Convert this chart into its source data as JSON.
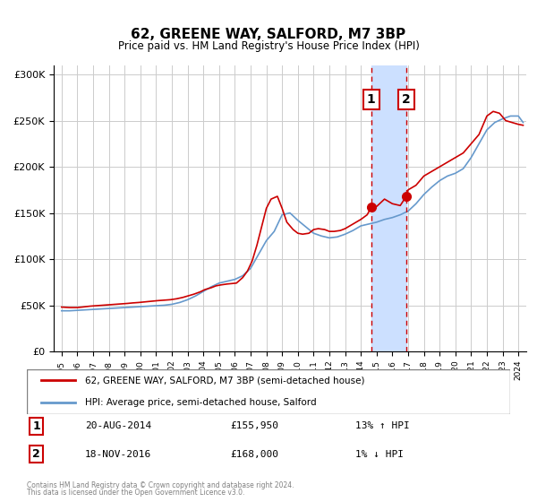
{
  "title": "62, GREENE WAY, SALFORD, M7 3BP",
  "subtitle": "Price paid vs. HM Land Registry's House Price Index (HPI)",
  "legend_label_red": "62, GREENE WAY, SALFORD, M7 3BP (semi-detached house)",
  "legend_label_blue": "HPI: Average price, semi-detached house, Salford",
  "annotation1_label": "1",
  "annotation1_date": "20-AUG-2014",
  "annotation1_price": "£155,950",
  "annotation1_hpi": "13% ↑ HPI",
  "annotation2_label": "2",
  "annotation2_date": "18-NOV-2016",
  "annotation2_price": "£168,000",
  "annotation2_hpi": "1% ↓ HPI",
  "footer1": "Contains HM Land Registry data © Crown copyright and database right 2024.",
  "footer2": "This data is licensed under the Open Government Licence v3.0.",
  "marker1_year": 2014.65,
  "marker1_value": 155950,
  "marker2_year": 2016.88,
  "marker2_value": 168000,
  "vline1_year": 2014.65,
  "vline2_year": 2016.88,
  "shade_start": 2014.65,
  "shade_end": 2016.88,
  "ylim": [
    0,
    310000
  ],
  "xlim_start": 1994.5,
  "xlim_end": 2024.5,
  "red_color": "#cc0000",
  "blue_color": "#6699cc",
  "shade_color": "#cce0ff",
  "grid_color": "#cccccc",
  "background_color": "#ffffff",
  "red_data_years": [
    1995.0,
    1995.5,
    1996.0,
    1996.3,
    1996.8,
    1997.2,
    1997.6,
    1998.0,
    1998.4,
    1998.8,
    1999.2,
    1999.5,
    1999.9,
    2000.2,
    2000.5,
    2000.8,
    2001.1,
    2001.5,
    2001.9,
    2002.3,
    2002.7,
    2003.0,
    2003.4,
    2003.8,
    2004.1,
    2004.5,
    2004.8,
    2005.1,
    2005.5,
    2005.8,
    2006.1,
    2006.5,
    2006.8,
    2007.1,
    2007.4,
    2007.7,
    2008.0,
    2008.3,
    2008.7,
    2009.0,
    2009.3,
    2009.7,
    2010.0,
    2010.3,
    2010.7,
    2011.0,
    2011.3,
    2011.7,
    2012.0,
    2012.3,
    2012.7,
    2013.0,
    2013.3,
    2013.7,
    2014.0,
    2014.4,
    2014.65,
    2015.0,
    2015.5,
    2016.0,
    2016.5,
    2016.88,
    2017.0,
    2017.5,
    2018.0,
    2018.5,
    2019.0,
    2019.5,
    2020.0,
    2020.5,
    2021.0,
    2021.5,
    2022.0,
    2022.4,
    2022.8,
    2023.2,
    2023.6,
    2024.0,
    2024.3
  ],
  "red_data_values": [
    48000,
    47500,
    47500,
    48000,
    49000,
    49500,
    50000,
    50500,
    51000,
    51500,
    52000,
    52500,
    53000,
    53500,
    54000,
    54500,
    55000,
    55500,
    56000,
    57000,
    58500,
    60000,
    62000,
    64500,
    67000,
    69000,
    71000,
    72000,
    73000,
    73500,
    74000,
    80000,
    87000,
    98000,
    115000,
    135000,
    155000,
    165000,
    168000,
    155000,
    140000,
    132000,
    128000,
    127000,
    128000,
    132000,
    133000,
    132000,
    130000,
    130000,
    131000,
    133000,
    136000,
    140000,
    143000,
    148000,
    155950,
    157000,
    165000,
    160000,
    158000,
    168000,
    175000,
    180000,
    190000,
    195000,
    200000,
    205000,
    210000,
    215000,
    225000,
    235000,
    255000,
    260000,
    258000,
    250000,
    248000,
    246000,
    245000
  ],
  "blue_data_years": [
    1995.0,
    1995.5,
    1996.0,
    1996.5,
    1997.0,
    1997.5,
    1998.0,
    1998.5,
    1999.0,
    1999.5,
    2000.0,
    2000.5,
    2001.0,
    2001.5,
    2002.0,
    2002.5,
    2003.0,
    2003.5,
    2004.0,
    2004.5,
    2005.0,
    2005.5,
    2006.0,
    2006.5,
    2007.0,
    2007.5,
    2008.0,
    2008.5,
    2009.0,
    2009.5,
    2010.0,
    2010.5,
    2011.0,
    2011.5,
    2012.0,
    2012.5,
    2013.0,
    2013.5,
    2014.0,
    2014.5,
    2015.0,
    2015.5,
    2016.0,
    2016.5,
    2017.0,
    2017.5,
    2018.0,
    2018.5,
    2019.0,
    2019.5,
    2020.0,
    2020.5,
    2021.0,
    2021.5,
    2022.0,
    2022.5,
    2023.0,
    2023.5,
    2024.0,
    2024.3
  ],
  "blue_data_values": [
    44000,
    44000,
    44500,
    45000,
    45500,
    46000,
    46500,
    47000,
    47500,
    48000,
    48500,
    49000,
    49500,
    50000,
    51000,
    53000,
    56000,
    60000,
    65000,
    70000,
    74000,
    76000,
    78000,
    82000,
    90000,
    105000,
    120000,
    130000,
    148000,
    150000,
    142000,
    135000,
    128000,
    125000,
    123000,
    124000,
    127000,
    131000,
    136000,
    138000,
    140000,
    143000,
    145000,
    148000,
    152000,
    160000,
    170000,
    178000,
    185000,
    190000,
    193000,
    198000,
    210000,
    225000,
    240000,
    248000,
    252000,
    255000,
    255000,
    248000
  ]
}
